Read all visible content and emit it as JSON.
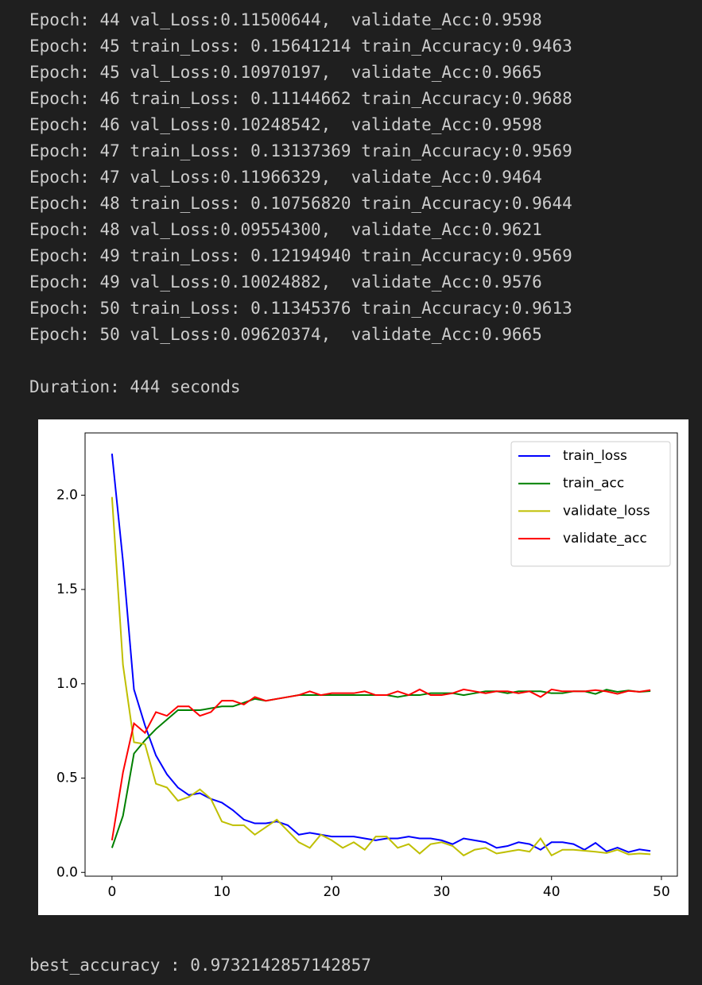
{
  "log": {
    "lines": [
      "Epoch: 44 val_Loss:0.11500644,  validate_Acc:0.9598",
      "Epoch: 45 train_Loss: 0.15641214 train_Accuracy:0.9463",
      "Epoch: 45 val_Loss:0.10970197,  validate_Acc:0.9665",
      "Epoch: 46 train_Loss: 0.11144662 train_Accuracy:0.9688",
      "Epoch: 46 val_Loss:0.10248542,  validate_Acc:0.9598",
      "Epoch: 47 train_Loss: 0.13137369 train_Accuracy:0.9569",
      "Epoch: 47 val_Loss:0.11966329,  validate_Acc:0.9464",
      "Epoch: 48 train_Loss: 0.10756820 train_Accuracy:0.9644",
      "Epoch: 48 val_Loss:0.09554300,  validate_Acc:0.9621",
      "Epoch: 49 train_Loss: 0.12194940 train_Accuracy:0.9569",
      "Epoch: 49 val_Loss:0.10024882,  validate_Acc:0.9576",
      "Epoch: 50 train_Loss: 0.11345376 train_Accuracy:0.9613",
      "Epoch: 50 val_Loss:0.09620374,  validate_Acc:0.9665"
    ],
    "duration": "Duration: 444 seconds",
    "result": "best_accuracy : 0.9732142857142857"
  },
  "chart_data": {
    "type": "line",
    "x": [
      0,
      1,
      2,
      3,
      4,
      5,
      6,
      7,
      8,
      9,
      10,
      11,
      12,
      13,
      14,
      15,
      16,
      17,
      18,
      19,
      20,
      21,
      22,
      23,
      24,
      25,
      26,
      27,
      28,
      29,
      30,
      31,
      32,
      33,
      34,
      35,
      36,
      37,
      38,
      39,
      40,
      41,
      42,
      43,
      44,
      45,
      46,
      47,
      48,
      49
    ],
    "series": [
      {
        "name": "train_loss",
        "color": "#0000ff",
        "values": [
          2.22,
          1.65,
          0.97,
          0.78,
          0.62,
          0.52,
          0.45,
          0.41,
          0.42,
          0.39,
          0.37,
          0.33,
          0.28,
          0.26,
          0.26,
          0.27,
          0.25,
          0.2,
          0.21,
          0.2,
          0.19,
          0.19,
          0.19,
          0.18,
          0.17,
          0.18,
          0.18,
          0.19,
          0.18,
          0.18,
          0.17,
          0.15,
          0.18,
          0.17,
          0.16,
          0.13,
          0.14,
          0.16,
          0.15,
          0.12,
          0.16,
          0.16,
          0.15,
          0.12,
          0.1564,
          0.1114,
          0.1314,
          0.1076,
          0.1219,
          0.1135
        ]
      },
      {
        "name": "train_acc",
        "color": "#008000",
        "values": [
          0.13,
          0.3,
          0.63,
          0.7,
          0.76,
          0.81,
          0.86,
          0.86,
          0.86,
          0.87,
          0.88,
          0.88,
          0.9,
          0.92,
          0.91,
          0.92,
          0.93,
          0.94,
          0.94,
          0.94,
          0.94,
          0.94,
          0.94,
          0.94,
          0.94,
          0.94,
          0.93,
          0.94,
          0.94,
          0.95,
          0.95,
          0.95,
          0.94,
          0.95,
          0.96,
          0.96,
          0.95,
          0.96,
          0.96,
          0.96,
          0.95,
          0.95,
          0.96,
          0.96,
          0.9463,
          0.9688,
          0.9569,
          0.9644,
          0.9569,
          0.9613
        ]
      },
      {
        "name": "validate_loss",
        "color": "#bfbf00",
        "values": [
          1.99,
          1.1,
          0.69,
          0.68,
          0.47,
          0.45,
          0.38,
          0.4,
          0.44,
          0.39,
          0.27,
          0.25,
          0.25,
          0.2,
          0.24,
          0.28,
          0.22,
          0.16,
          0.13,
          0.2,
          0.17,
          0.13,
          0.16,
          0.12,
          0.19,
          0.19,
          0.13,
          0.15,
          0.1,
          0.15,
          0.16,
          0.14,
          0.09,
          0.12,
          0.13,
          0.1,
          0.11,
          0.12,
          0.11,
          0.18,
          0.09,
          0.12,
          0.12,
          0.115,
          0.1097,
          0.1025,
          0.1197,
          0.0955,
          0.1002,
          0.0962
        ]
      },
      {
        "name": "validate_acc",
        "color": "#ff0000",
        "values": [
          0.17,
          0.53,
          0.79,
          0.74,
          0.85,
          0.83,
          0.88,
          0.88,
          0.83,
          0.85,
          0.91,
          0.91,
          0.89,
          0.93,
          0.91,
          0.92,
          0.93,
          0.94,
          0.96,
          0.94,
          0.95,
          0.95,
          0.95,
          0.96,
          0.94,
          0.94,
          0.96,
          0.94,
          0.97,
          0.94,
          0.94,
          0.95,
          0.97,
          0.96,
          0.95,
          0.96,
          0.96,
          0.95,
          0.96,
          0.93,
          0.97,
          0.96,
          0.96,
          0.9598,
          0.9665,
          0.9598,
          0.9464,
          0.9621,
          0.9576,
          0.9665
        ]
      }
    ],
    "xlim": [
      -2.45,
      51.45
    ],
    "ylim": [
      -0.02,
      2.33
    ],
    "xticks": [
      0,
      10,
      20,
      30,
      40,
      50
    ],
    "yticks": [
      {
        "value": 0,
        "label": "0.0"
      },
      0.5,
      {
        "value": 1,
        "label": "1.0"
      },
      1.5,
      {
        "value": 2,
        "label": "2.0"
      }
    ],
    "grid": false,
    "legend": "upper right"
  }
}
